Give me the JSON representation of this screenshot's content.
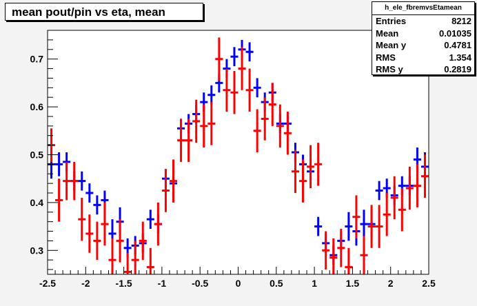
{
  "title": "mean pout/pin vs eta, mean",
  "stats": {
    "name": "h_ele_fbremvsEtamean",
    "rows": [
      {
        "label": "Entries",
        "value": "8212"
      },
      {
        "label": "Mean",
        "value": "0.01035"
      },
      {
        "label": "Mean y",
        "value": "0.4781"
      },
      {
        "label": "RMS",
        "value": "1.354"
      },
      {
        "label": "RMS y",
        "value": "0.2819"
      }
    ]
  },
  "colors": {
    "series_blue": "#0000ff",
    "series_red": "#ff0000",
    "frame": "#000000",
    "canvas": "#f3f3f3"
  },
  "chart_data": {
    "type": "scatter",
    "title": "mean pout/pin vs eta, mean",
    "xlabel": "",
    "ylabel": "",
    "xlim": [
      -2.5,
      2.5
    ],
    "ylim": [
      0.25,
      0.76
    ],
    "x_ticks": [
      "-2.5",
      "-2",
      "-1.5",
      "-1",
      "-0.5",
      "0",
      "0.5",
      "1",
      "1.5",
      "2",
      "2.5"
    ],
    "y_ticks": [
      "0.3",
      "0.4",
      "0.5",
      "0.6",
      "0.7"
    ],
    "x_halfwidth": 0.05,
    "series": [
      {
        "color": "blue",
        "points": [
          {
            "x": -2.45,
            "y": 0.48,
            "err": 0.03
          },
          {
            "x": -2.35,
            "y": 0.48,
            "err": 0.025
          },
          {
            "x": -2.25,
            "y": 0.485,
            "err": 0.02
          },
          {
            "x": -2.15,
            "y": 0.445,
            "err": 0.02
          },
          {
            "x": -2.05,
            "y": 0.445,
            "err": 0.02
          },
          {
            "x": -1.95,
            "y": 0.42,
            "err": 0.02
          },
          {
            "x": -1.85,
            "y": 0.395,
            "err": 0.02
          },
          {
            "x": -1.75,
            "y": 0.405,
            "err": 0.02
          },
          {
            "x": -1.65,
            "y": 0.335,
            "err": 0.03
          },
          {
            "x": -1.55,
            "y": 0.36,
            "err": 0.03
          },
          {
            "x": -1.45,
            "y": 0.305,
            "err": 0.02
          },
          {
            "x": -1.35,
            "y": 0.31,
            "err": 0.02
          },
          {
            "x": -1.25,
            "y": 0.315,
            "err": 0.02
          },
          {
            "x": -1.15,
            "y": 0.365,
            "err": 0.02
          },
          {
            "x": -1.05,
            "y": 0.355,
            "err": 0.02
          },
          {
            "x": -0.95,
            "y": 0.45,
            "err": 0.02
          },
          {
            "x": -0.85,
            "y": 0.44,
            "err": 0.02
          },
          {
            "x": -0.75,
            "y": 0.555,
            "err": 0.02
          },
          {
            "x": -0.65,
            "y": 0.565,
            "err": 0.02
          },
          {
            "x": -0.55,
            "y": 0.585,
            "err": 0.02
          },
          {
            "x": -0.45,
            "y": 0.61,
            "err": 0.02
          },
          {
            "x": -0.35,
            "y": 0.625,
            "err": 0.02
          },
          {
            "x": -0.25,
            "y": 0.65,
            "err": 0.02
          },
          {
            "x": -0.15,
            "y": 0.68,
            "err": 0.02
          },
          {
            "x": -0.05,
            "y": 0.705,
            "err": 0.02
          },
          {
            "x": 0.05,
            "y": 0.72,
            "err": 0.02
          },
          {
            "x": 0.15,
            "y": 0.715,
            "err": 0.02
          },
          {
            "x": 0.25,
            "y": 0.64,
            "err": 0.02
          },
          {
            "x": 0.35,
            "y": 0.61,
            "err": 0.02
          },
          {
            "x": 0.45,
            "y": 0.63,
            "err": 0.02
          },
          {
            "x": 0.55,
            "y": 0.565,
            "err": 0.02
          },
          {
            "x": 0.65,
            "y": 0.565,
            "err": 0.02
          },
          {
            "x": 0.75,
            "y": 0.505,
            "err": 0.02
          },
          {
            "x": 0.85,
            "y": 0.48,
            "err": 0.02
          },
          {
            "x": 0.95,
            "y": 0.465,
            "err": 0.02
          },
          {
            "x": 1.05,
            "y": 0.35,
            "err": 0.02
          },
          {
            "x": 1.15,
            "y": 0.315,
            "err": 0.02
          },
          {
            "x": 1.25,
            "y": 0.29,
            "err": 0.02
          },
          {
            "x": 1.35,
            "y": 0.32,
            "err": 0.02
          },
          {
            "x": 1.45,
            "y": 0.35,
            "err": 0.03
          },
          {
            "x": 1.55,
            "y": 0.34,
            "err": 0.03
          },
          {
            "x": 1.65,
            "y": 0.355,
            "err": 0.03
          },
          {
            "x": 1.75,
            "y": 0.355,
            "err": 0.03
          },
          {
            "x": 1.85,
            "y": 0.425,
            "err": 0.02
          },
          {
            "x": 1.95,
            "y": 0.43,
            "err": 0.02
          },
          {
            "x": 2.05,
            "y": 0.415,
            "err": 0.02
          },
          {
            "x": 2.15,
            "y": 0.435,
            "err": 0.02
          },
          {
            "x": 2.25,
            "y": 0.435,
            "err": 0.02
          },
          {
            "x": 2.35,
            "y": 0.49,
            "err": 0.025
          },
          {
            "x": 2.45,
            "y": 0.475,
            "err": 0.03
          }
        ]
      },
      {
        "color": "red",
        "points": [
          {
            "x": -2.45,
            "y": 0.52,
            "err": 0.035
          },
          {
            "x": -2.35,
            "y": 0.405,
            "err": 0.045
          },
          {
            "x": -2.25,
            "y": 0.445,
            "err": 0.04
          },
          {
            "x": -2.15,
            "y": 0.445,
            "err": 0.04
          },
          {
            "x": -2.05,
            "y": 0.365,
            "err": 0.045
          },
          {
            "x": -1.95,
            "y": 0.335,
            "err": 0.04
          },
          {
            "x": -1.85,
            "y": 0.32,
            "err": 0.04
          },
          {
            "x": -1.75,
            "y": 0.355,
            "err": 0.045
          },
          {
            "x": -1.65,
            "y": 0.28,
            "err": 0.045
          },
          {
            "x": -1.55,
            "y": 0.32,
            "err": 0.045
          },
          {
            "x": -1.45,
            "y": 0.255,
            "err": 0.04
          },
          {
            "x": -1.35,
            "y": 0.28,
            "err": 0.04
          },
          {
            "x": -1.25,
            "y": 0.32,
            "err": 0.04
          },
          {
            "x": -1.15,
            "y": 0.265,
            "err": 0.04
          },
          {
            "x": -1.05,
            "y": 0.355,
            "err": 0.045
          },
          {
            "x": -0.95,
            "y": 0.425,
            "err": 0.045
          },
          {
            "x": -0.85,
            "y": 0.445,
            "err": 0.045
          },
          {
            "x": -0.75,
            "y": 0.53,
            "err": 0.045
          },
          {
            "x": -0.65,
            "y": 0.53,
            "err": 0.045
          },
          {
            "x": -0.55,
            "y": 0.57,
            "err": 0.045
          },
          {
            "x": -0.45,
            "y": 0.56,
            "err": 0.045
          },
          {
            "x": -0.35,
            "y": 0.565,
            "err": 0.045
          },
          {
            "x": -0.25,
            "y": 0.7,
            "err": 0.045
          },
          {
            "x": -0.15,
            "y": 0.635,
            "err": 0.045
          },
          {
            "x": -0.05,
            "y": 0.63,
            "err": 0.045
          },
          {
            "x": 0.05,
            "y": 0.68,
            "err": 0.045
          },
          {
            "x": 0.15,
            "y": 0.635,
            "err": 0.045
          },
          {
            "x": 0.25,
            "y": 0.55,
            "err": 0.045
          },
          {
            "x": 0.35,
            "y": 0.575,
            "err": 0.045
          },
          {
            "x": 0.45,
            "y": 0.605,
            "err": 0.045
          },
          {
            "x": 0.55,
            "y": 0.56,
            "err": 0.045
          },
          {
            "x": 0.65,
            "y": 0.545,
            "err": 0.045
          },
          {
            "x": 0.75,
            "y": 0.465,
            "err": 0.045
          },
          {
            "x": 0.85,
            "y": 0.445,
            "err": 0.045
          },
          {
            "x": 0.95,
            "y": 0.475,
            "err": 0.045
          },
          {
            "x": 1.05,
            "y": 0.48,
            "err": 0.045
          },
          {
            "x": 1.15,
            "y": 0.3,
            "err": 0.04
          },
          {
            "x": 1.25,
            "y": 0.285,
            "err": 0.04
          },
          {
            "x": 1.35,
            "y": 0.305,
            "err": 0.04
          },
          {
            "x": 1.45,
            "y": 0.265,
            "err": 0.04
          },
          {
            "x": 1.55,
            "y": 0.37,
            "err": 0.045
          },
          {
            "x": 1.65,
            "y": 0.29,
            "err": 0.04
          },
          {
            "x": 1.75,
            "y": 0.35,
            "err": 0.045
          },
          {
            "x": 1.85,
            "y": 0.35,
            "err": 0.045
          },
          {
            "x": 1.95,
            "y": 0.375,
            "err": 0.045
          },
          {
            "x": 2.05,
            "y": 0.41,
            "err": 0.045
          },
          {
            "x": 2.15,
            "y": 0.385,
            "err": 0.045
          },
          {
            "x": 2.25,
            "y": 0.43,
            "err": 0.045
          },
          {
            "x": 2.35,
            "y": 0.435,
            "err": 0.045
          },
          {
            "x": 2.45,
            "y": 0.455,
            "err": 0.045
          }
        ]
      }
    ]
  }
}
